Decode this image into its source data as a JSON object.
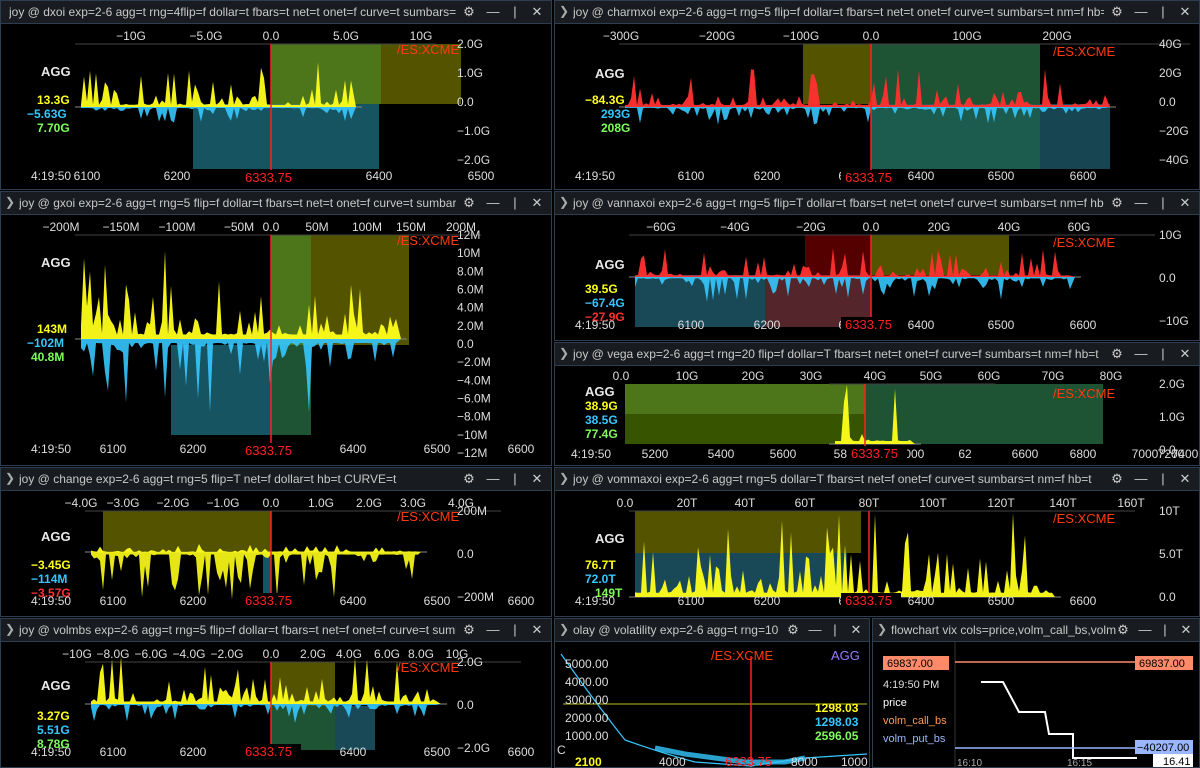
{
  "colors": {
    "yellow": "#ffff1a",
    "cyan": "#35c8ff",
    "green": "#7dff5a",
    "red": "#ff3030",
    "orange": "#ff7b00",
    "ttl": "#c8c8c8",
    "xcme": "#ff3a10",
    "agg": "#e8e8e8",
    "marker": "#ff2020"
  },
  "panels": [
    {
      "key": "p1",
      "title": "joy @ dxoi exp=2-6 agg=t rng=4flip=f dollar=t fbars=t net=t onet=f curve=t sumbars=",
      "top_ticks": [
        "−10G",
        "−5.0G",
        "0.0",
        "5.0G",
        "10G"
      ],
      "right_ticks": [
        "2.0G",
        "1.0G",
        "0.0",
        "−1.0G",
        "−2.0G"
      ],
      "bottom_ticks": [
        "6100",
        "6200",
        "63",
        "6400",
        "6500"
      ],
      "agg": "AGG",
      "exchange": "/ES:XCME",
      "v1": "13.3G",
      "v2": "−5.63G",
      "v3": "7.70G",
      "time": "4:19:50",
      "marker": "6333.75"
    },
    {
      "key": "p2",
      "title": "joy @ charmxoi exp=2-6 agg=t rng=5 flip=f dollar=t fbars=t net=t onet=f curve=t sumbars=t nm=f hb=t",
      "top_ticks": [
        "−300G",
        "−200G",
        "−100G",
        "0.0",
        "100G",
        "200G"
      ],
      "right_ticks": [
        "40G",
        "20G",
        "0.0",
        "−20G",
        "−40G"
      ],
      "bottom_ticks": [
        "6100",
        "6200",
        "63",
        "6400",
        "6500",
        "6600"
      ],
      "agg": "AGG",
      "exchange": "/ES:XCME",
      "v1": "−84.3G",
      "v2": "293G",
      "v3": "208G",
      "time": "4:19:50",
      "marker": "6333.75"
    },
    {
      "key": "p3",
      "title": "joy @ gxoi exp=2-6 agg=t rng=5 flip=f dollar=t fbars=t net=t onet=f curve=t sumbars",
      "top_ticks": [
        "−200M",
        "−150M",
        "−100M",
        "−50M",
        "0.0",
        "50M",
        "100M",
        "150M",
        "200M"
      ],
      "right_ticks": [
        "12M",
        "10M",
        "8.0M",
        "6.0M",
        "4.0M",
        "2.0M",
        "0.0",
        "−2.0M",
        "−4.0M",
        "−6.0M",
        "−8.0M",
        "−10M",
        "−12M"
      ],
      "bottom_ticks": [
        "6100",
        "6200",
        "6",
        "6400",
        "6500",
        "6600"
      ],
      "agg": "AGG",
      "exchange": "/ES:XCME",
      "v1": "143M",
      "v2": "−102M",
      "v3": "40.8M",
      "time": "4:19:50",
      "marker": "6333.75"
    },
    {
      "key": "p4",
      "title": "joy @ vannaxoi exp=2-6 agg=t rng=5 flip=T dollar=t fbars=t net=t onet=f curve=t sumbars=t nm=f hb=t",
      "top_ticks": [
        "−60G",
        "−40G",
        "−20G",
        "0.0",
        "20G",
        "40G",
        "60G"
      ],
      "right_ticks": [
        "10G",
        "0.0",
        "−10G"
      ],
      "bottom_ticks": [
        "6100",
        "6200",
        "63",
        "6400",
        "6500",
        "6600"
      ],
      "agg": "AGG",
      "exchange": "/ES:XCME",
      "v1": "39.5G",
      "v2": "−67.4G",
      "v3": "−27.9G",
      "time": "4:19:50",
      "marker": "6333.75"
    },
    {
      "key": "p5",
      "title": "joy @ vega exp=2-6 agg=t rng=20 flip=f dollar=T fbars=t net=t onet=f curve=f sumbars=t nm=f hb=t",
      "top_ticks": [
        "0.0",
        "10G",
        "20G",
        "30G",
        "40G",
        "50G",
        "60G",
        "70G",
        "80G"
      ],
      "right_ticks": [
        "2.0G",
        "1.0G",
        "0.0"
      ],
      "bottom_ticks": [
        "5200",
        "5400",
        "5600",
        "5800",
        "6000",
        "62",
        "6600",
        "6800",
        "7000",
        "7200",
        "7400"
      ],
      "agg": "AGG",
      "exchange": "/ES:XCME",
      "v1": "38.9G",
      "v2": "38.5G",
      "v3": "77.4G",
      "time": "4:19:50",
      "marker": "6333.75"
    },
    {
      "key": "p6",
      "title": "joy @ change exp=2-6 agg=t rng=5 flip=T net=f dollar=t hb=t CURVE=t",
      "top_ticks": [
        "−4.0G",
        "−3.0G",
        "−2.0G",
        "−1.0G",
        "0.0",
        "1.0G",
        "2.0G",
        "3.0G",
        "4.0G"
      ],
      "right_ticks": [
        "200M",
        "0.0",
        "−200M"
      ],
      "bottom_ticks": [
        "6100",
        "6200",
        "6300",
        "6400",
        "6500",
        "6600"
      ],
      "agg": "AGG",
      "exchange": "/ES:XCME",
      "v1": "−3.45G",
      "v2": "−114M",
      "v3": "−3.57G",
      "time": "4:19:50",
      "marker": "6333.75"
    },
    {
      "key": "p7",
      "title": "joy @ vommaxoi exp=2-6 agg=t rng=5 dollar=T fbars=t net=f onet=f curve=t sumbars=t nm=f hb=t",
      "top_ticks": [
        "0.0",
        "20T",
        "40T",
        "60T",
        "80T",
        "100T",
        "120T",
        "140T",
        "160T"
      ],
      "right_ticks": [
        "10T",
        "5.0T",
        "0.0"
      ],
      "bottom_ticks": [
        "6100",
        "6200",
        "63",
        "6400",
        "6500",
        "6600"
      ],
      "agg": "AGG",
      "exchange": "/ES:XCME",
      "v1": "76.7T",
      "v2": "72.0T",
      "v3": "149T",
      "time": "4:19:50",
      "marker": "6333.75"
    },
    {
      "key": "p8",
      "title": "joy @ volmbs exp=2-6 agg=t rng=5 flip=f dollar=t fbars=t net=f onet=f curve=t sumb",
      "top_ticks": [
        "−10G",
        "−8.0G",
        "−6.0G",
        "−4.0G",
        "−2.0G",
        "0.0",
        "2.0G",
        "4.0G",
        "6.0G",
        "8.0G",
        "10G"
      ],
      "right_ticks": [
        "2.0G",
        "0.0",
        "−2.0G"
      ],
      "bottom_ticks": [
        "6100",
        "6200",
        "6300",
        "6400",
        "6500",
        "6600"
      ],
      "agg": "AGG",
      "exchange": "/ES:XCME",
      "v1": "3.27G",
      "v2": "5.51G",
      "v3": "8.78G",
      "time": "4:19:50",
      "marker": "6333.75"
    }
  ],
  "olay": {
    "title": "olay @ volatility exp=2-6 agg=t rng=10",
    "exchange": "/ES:XCME",
    "agg": "AGG",
    "left_ticks": [
      "5000.00",
      "4000.00",
      "3000.00",
      "2000.00",
      "1000.00"
    ],
    "bottom_ticks": [
      "4000",
      "6333.75",
      "8000",
      "1000"
    ],
    "v1": "1298.03",
    "v2": "1298.03",
    "v3": "2596.05",
    "badge": "2100",
    "corner": "C"
  },
  "flowchart": {
    "title": "flowchart vix cols=price,volm_call_bs,volm",
    "price_tag_left": "69837.00",
    "price_tag_right": "69837.00",
    "time": "4:19:50 PM",
    "price_label": "price",
    "call_label": "volm_call_bs",
    "put_label": "volm_put_bs",
    "tag_neg": "−40207.00",
    "tag_val": "16.41",
    "x_ticks": [
      "16:10",
      "16:15"
    ]
  }
}
